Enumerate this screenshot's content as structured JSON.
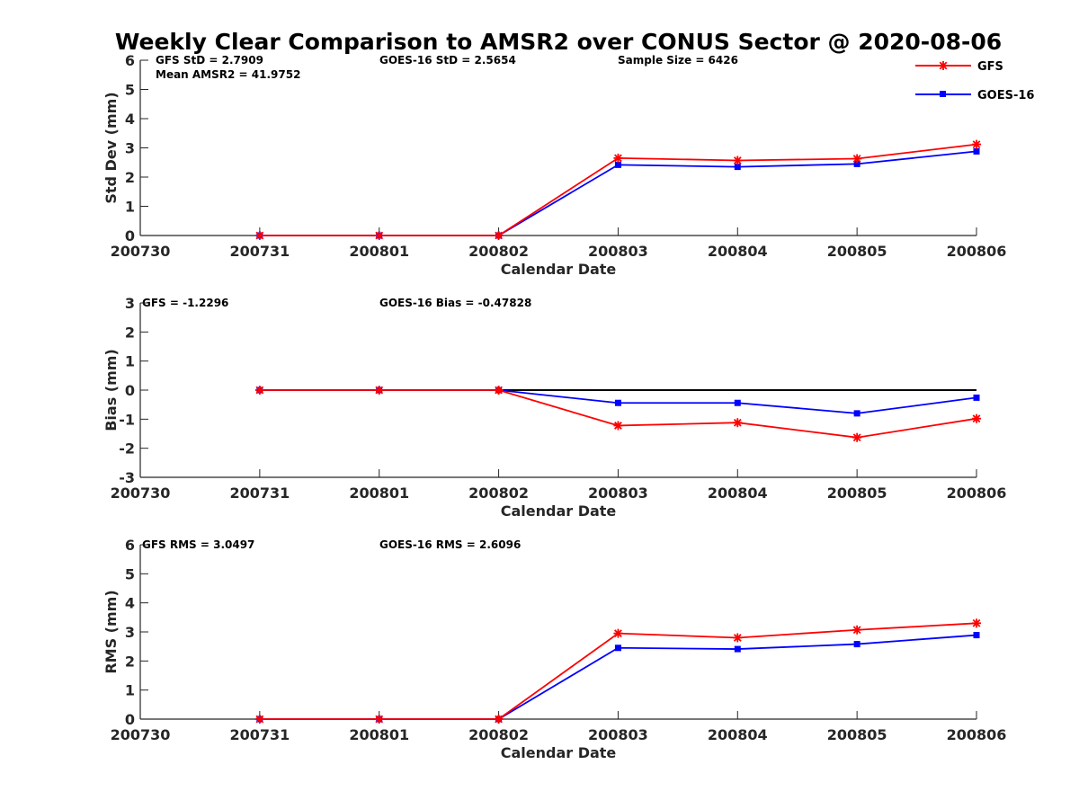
{
  "title": "Weekly Clear Comparison to AMSR2 over CONUS Sector @ 2020-08-06",
  "legend": [
    {
      "name": "GFS",
      "color": "#ff0000",
      "marker": "asterisk"
    },
    {
      "name": "GOES-16",
      "color": "#0000ff",
      "marker": "square"
    }
  ],
  "chart_data": [
    {
      "type": "line",
      "categories": [
        "200730",
        "200731",
        "200801",
        "200802",
        "200803",
        "200804",
        "200805",
        "200806"
      ],
      "xlabel": "Calendar Date",
      "ylabel": "Std Dev (mm)",
      "ylim": [
        0,
        6
      ],
      "yticks": [
        0,
        1,
        2,
        3,
        4,
        5,
        6
      ],
      "annotations": [
        "GFS StD = 2.7909",
        "GOES-16 StD = 2.5654",
        "Sample Size = 6426",
        "Mean AMSR2 = 41.9752"
      ],
      "series": [
        {
          "name": "GFS",
          "color": "#ff0000",
          "values": [
            null,
            0,
            0,
            0,
            2.65,
            2.57,
            2.63,
            3.12
          ]
        },
        {
          "name": "GOES-16",
          "color": "#0000ff",
          "values": [
            null,
            0,
            0,
            0,
            2.42,
            2.35,
            2.45,
            2.88
          ]
        }
      ]
    },
    {
      "type": "line",
      "categories": [
        "200730",
        "200731",
        "200801",
        "200802",
        "200803",
        "200804",
        "200805",
        "200806"
      ],
      "xlabel": "Calendar Date",
      "ylabel": "Bias (mm)",
      "ylim": [
        -3,
        3
      ],
      "yticks": [
        -3,
        -2,
        -1,
        0,
        1,
        2,
        3
      ],
      "zero_line": true,
      "annotations": [
        "GFS = -1.2296",
        "GOES-16 Bias  = -0.47828"
      ],
      "series": [
        {
          "name": "GFS",
          "color": "#ff0000",
          "values": [
            null,
            0,
            0,
            0,
            -1.22,
            -1.12,
            -1.63,
            -0.98
          ]
        },
        {
          "name": "GOES-16",
          "color": "#0000ff",
          "values": [
            null,
            0,
            0,
            0,
            -0.44,
            -0.44,
            -0.8,
            -0.26
          ]
        }
      ]
    },
    {
      "type": "line",
      "categories": [
        "200730",
        "200731",
        "200801",
        "200802",
        "200803",
        "200804",
        "200805",
        "200806"
      ],
      "xlabel": "Calendar Date",
      "ylabel": "RMS (mm)",
      "ylim": [
        0,
        6
      ],
      "yticks": [
        0,
        1,
        2,
        3,
        4,
        5,
        6
      ],
      "annotations": [
        "GFS RMS = 3.0497",
        "GOES-16 RMS = 2.6096"
      ],
      "series": [
        {
          "name": "GFS",
          "color": "#ff0000",
          "values": [
            null,
            0,
            0,
            0,
            2.95,
            2.8,
            3.07,
            3.3
          ]
        },
        {
          "name": "GOES-16",
          "color": "#0000ff",
          "values": [
            null,
            0,
            0,
            0,
            2.45,
            2.41,
            2.58,
            2.89
          ]
        }
      ]
    }
  ]
}
